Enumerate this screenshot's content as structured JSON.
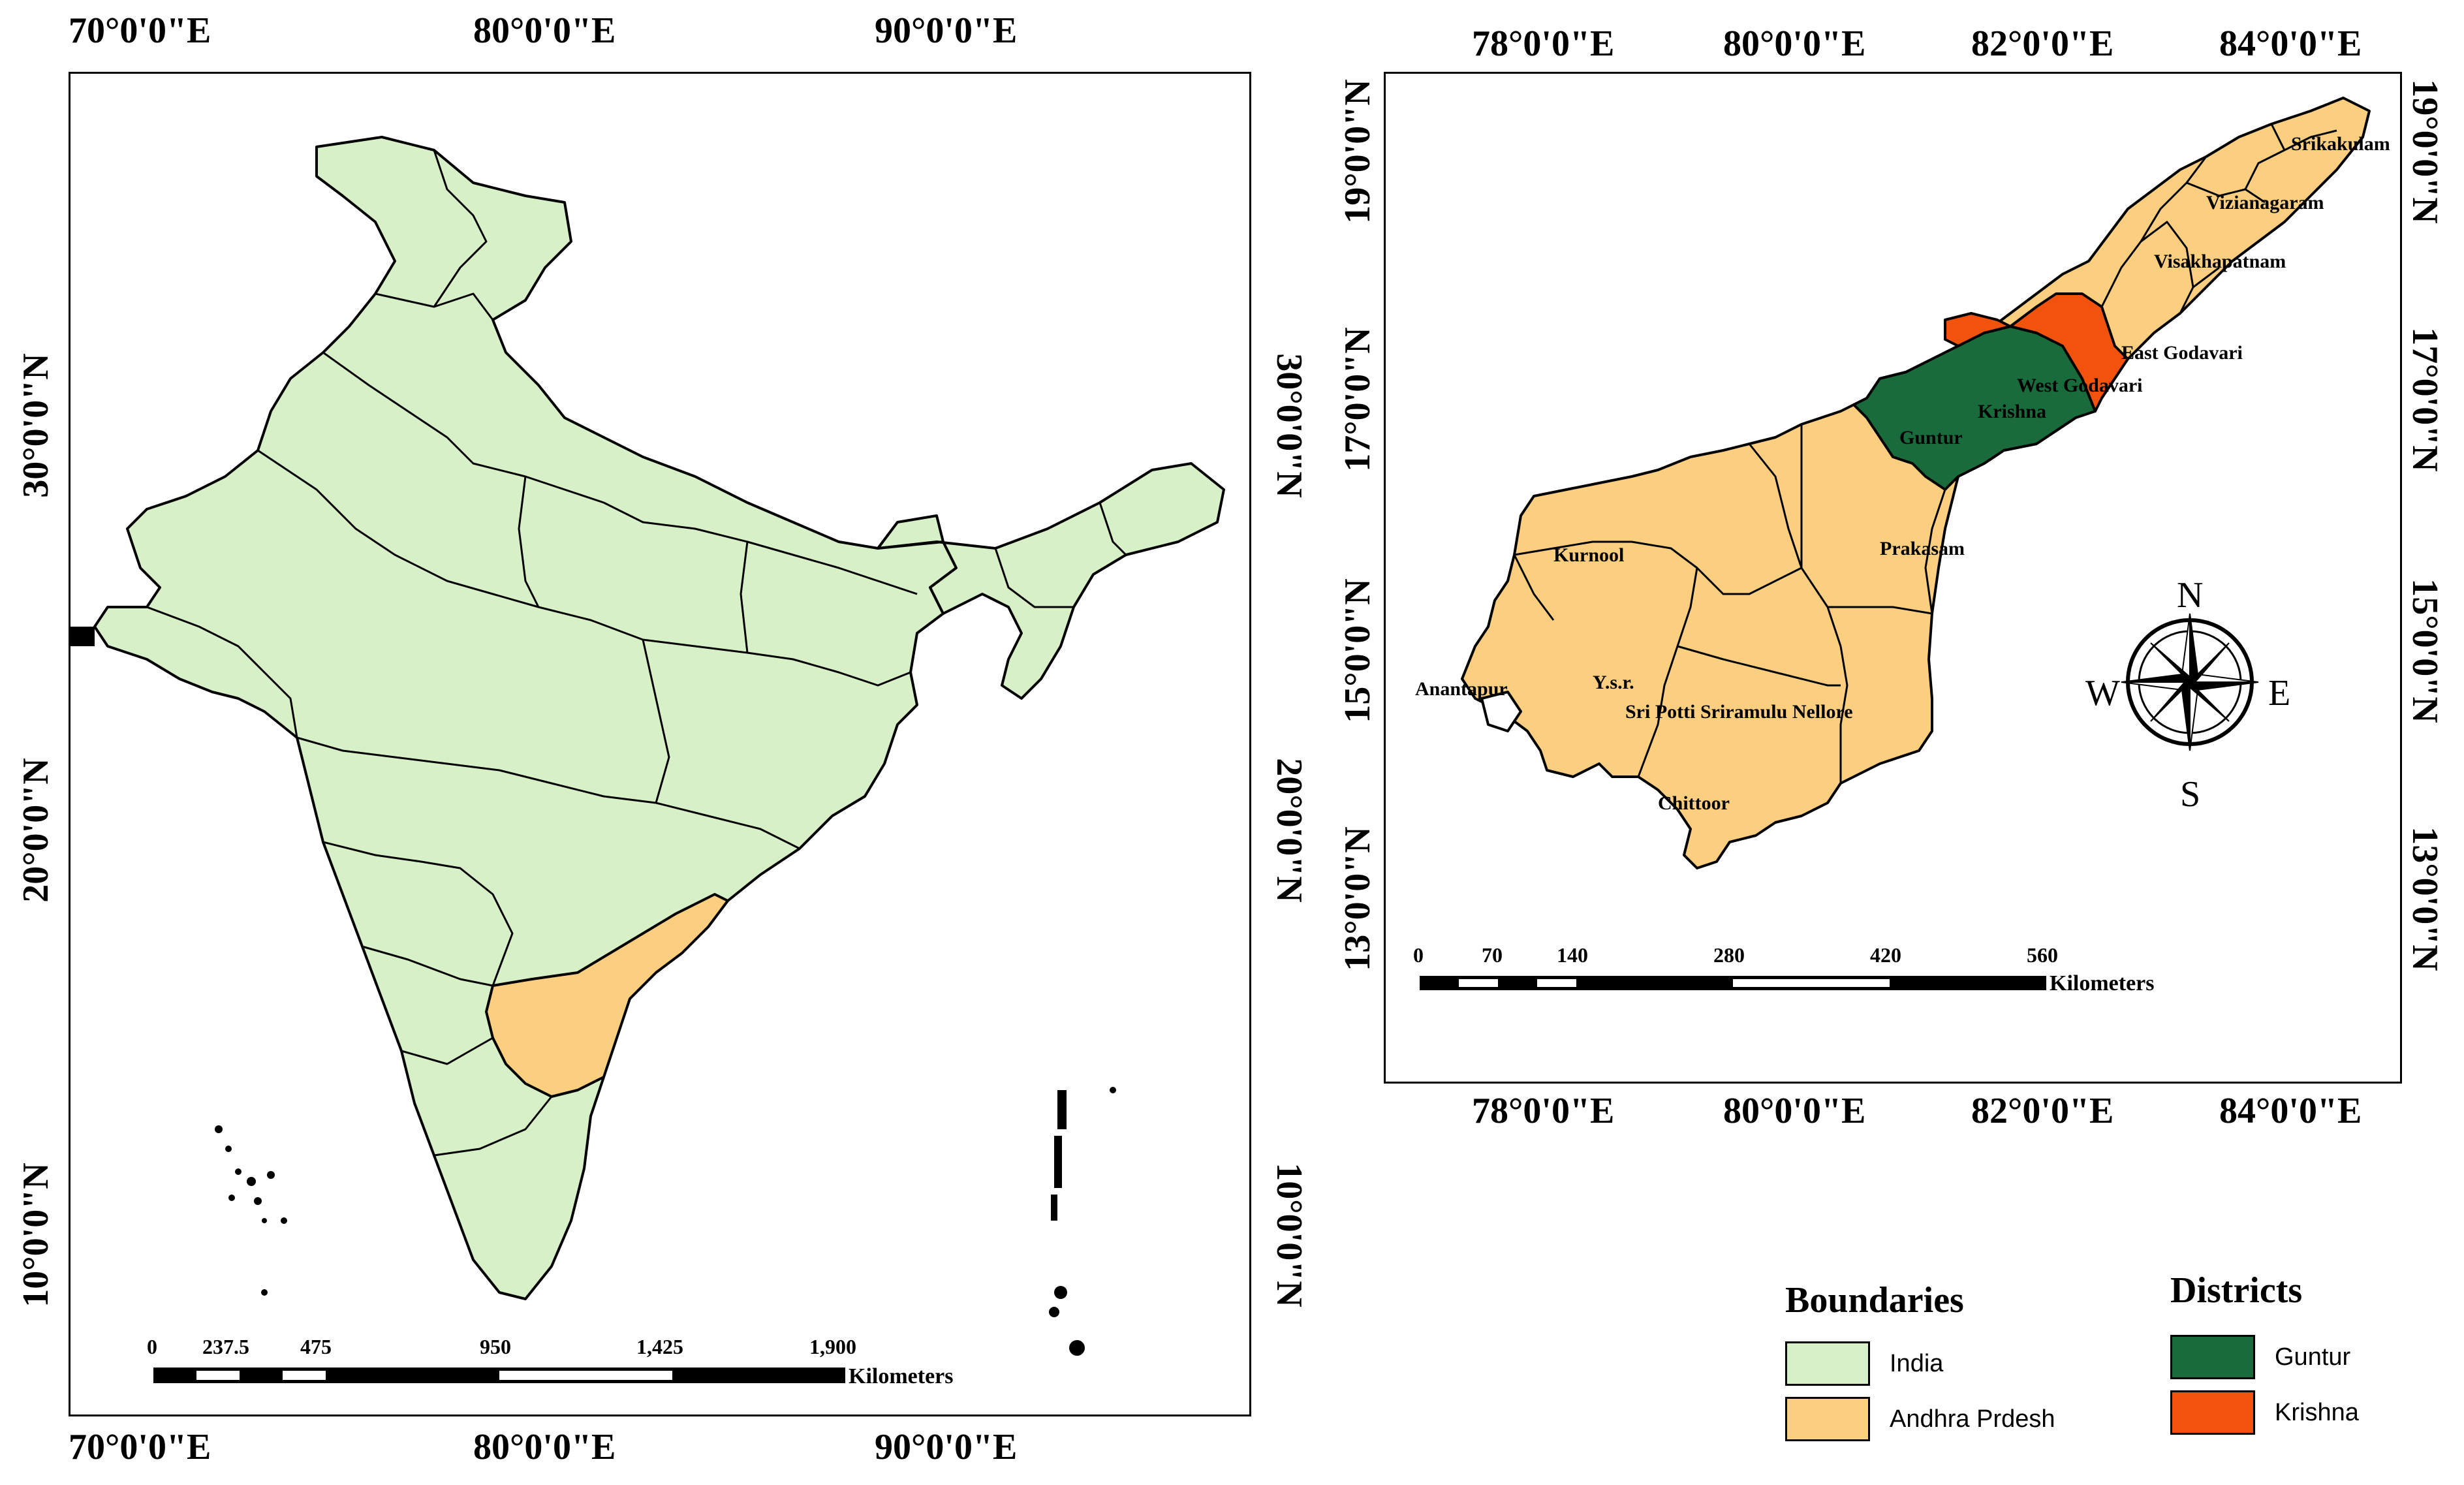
{
  "left_map": {
    "top_labels": [
      "70°0'0\"E",
      "80°0'0\"E",
      "90°0'0\"E"
    ],
    "bottom_labels": [
      "70°0'0\"E",
      "80°0'0\"E",
      "90°0'0\"E"
    ],
    "left_labels": [
      "30°0'0\"N",
      "20°0'0\"N",
      "10°0'0\"N"
    ],
    "right_labels": [
      "30°0'0\"N",
      "20°0'0\"N",
      "10°0'0\"N"
    ],
    "scale": {
      "ticks": [
        "0",
        "237.5",
        "475",
        "950",
        "1,425",
        "1,900"
      ],
      "unit": "Kilometers"
    }
  },
  "right_map": {
    "top_labels": [
      "78°0'0\"E",
      "80°0'0\"E",
      "82°0'0\"E",
      "84°0'0\"E"
    ],
    "bottom_labels": [
      "78°0'0\"E",
      "80°0'0\"E",
      "82°0'0\"E",
      "84°0'0\"E"
    ],
    "left_labels": [
      "19°0'0\"N",
      "17°0'0\"N",
      "15°0'0\"N",
      "13°0'0\"N"
    ],
    "right_labels": [
      "19°0'0\"N",
      "17°0'0\"N",
      "15°0'0\"N",
      "13°0'0\"N"
    ],
    "districts": [
      "Srikakulam",
      "Vizianagaram",
      "Visakhapatnam",
      "East Godavari",
      "West Godavari",
      "Krishna",
      "Guntur",
      "Prakasam",
      "Kurnool",
      "Anantapur",
      "Y.s.r.",
      "Sri Potti Sriramulu Nellore",
      "Chittoor"
    ],
    "compass": {
      "n": "N",
      "s": "S",
      "e": "E",
      "w": "W"
    },
    "scale": {
      "ticks": [
        "0",
        "70",
        "140",
        "280",
        "420",
        "560"
      ],
      "unit": "Kilometers"
    }
  },
  "legend": {
    "boundaries_title": "Boundaries",
    "boundaries": [
      {
        "label": "India",
        "color": "#d8f0c8"
      },
      {
        "label": "Andhra Prdesh",
        "color": "#fbcf7f"
      }
    ],
    "districts_title": "Districts",
    "districts": [
      {
        "label": "Guntur",
        "color": "#1a6b3c"
      },
      {
        "label": "Krishna",
        "color": "#f2530c"
      }
    ]
  },
  "colors": {
    "india": "#d8f0c8",
    "andhra": "#fbcf7f",
    "guntur": "#1a6b3c",
    "krishna": "#f2530c"
  }
}
